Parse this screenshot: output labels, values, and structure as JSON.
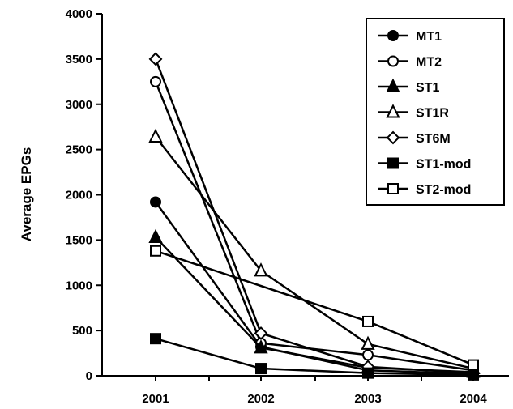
{
  "chart_data": {
    "type": "line",
    "title": "",
    "xlabel": "",
    "ylabel": "Average EPGs",
    "x": [
      "2001",
      "2002",
      "2003",
      "2004"
    ],
    "ylim": [
      0,
      4000
    ],
    "yticks": [
      0,
      500,
      1000,
      1500,
      2000,
      2500,
      3000,
      3500,
      4000
    ],
    "grid": false,
    "legend_position": "top-right",
    "series": [
      {
        "name": "MT1",
        "marker": "circle-filled",
        "values": [
          1920,
          320,
          60,
          20
        ]
      },
      {
        "name": "MT2",
        "marker": "circle-open",
        "values": [
          3250,
          360,
          230,
          60
        ]
      },
      {
        "name": "ST1",
        "marker": "triangle-filled",
        "values": [
          1530,
          310,
          90,
          40
        ]
      },
      {
        "name": "ST1R",
        "marker": "triangle-open",
        "values": [
          2640,
          1160,
          350,
          80
        ]
      },
      {
        "name": "ST6M",
        "marker": "diamond-open",
        "values": [
          3500,
          470,
          100,
          30
        ]
      },
      {
        "name": "ST1-mod",
        "marker": "square-filled",
        "values": [
          410,
          80,
          30,
          10
        ]
      },
      {
        "name": "ST2-mod",
        "marker": "square-open",
        "values": [
          1380,
          null,
          600,
          120
        ]
      }
    ]
  }
}
